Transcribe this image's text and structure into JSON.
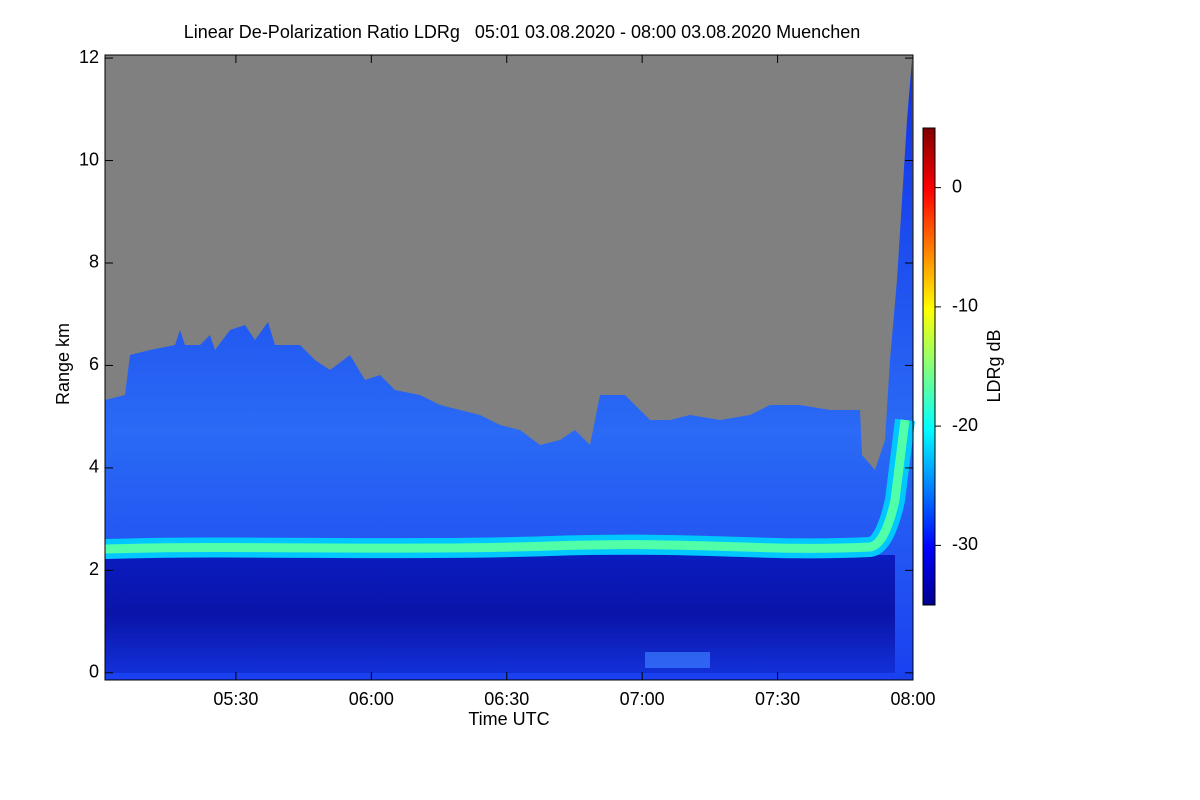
{
  "chart_data": {
    "type": "heatmap",
    "title": "Linear De-Polarization Ratio LDRg   05:01 03.08.2020 - 08:00 03.08.2020 Muenchen",
    "xlabel": "Time UTC",
    "ylabel": "Range km",
    "xlim": [
      301,
      480
    ],
    "xticks": [
      {
        "value": 330,
        "label": "05:30"
      },
      {
        "value": 360,
        "label": "06:00"
      },
      {
        "value": 390,
        "label": "06:30"
      },
      {
        "value": 420,
        "label": "07:00"
      },
      {
        "value": 450,
        "label": "07:30"
      },
      {
        "value": 480,
        "label": "08:00"
      }
    ],
    "ylim": [
      -0.14,
      12.06
    ],
    "yticks": [
      0,
      2,
      4,
      6,
      8,
      10,
      12
    ],
    "colorbar": {
      "label": "LDRg dB",
      "clim": [
        -35,
        5
      ],
      "ticks": [
        0,
        -10,
        -20,
        -30
      ],
      "colormap": "jet"
    }
  }
}
